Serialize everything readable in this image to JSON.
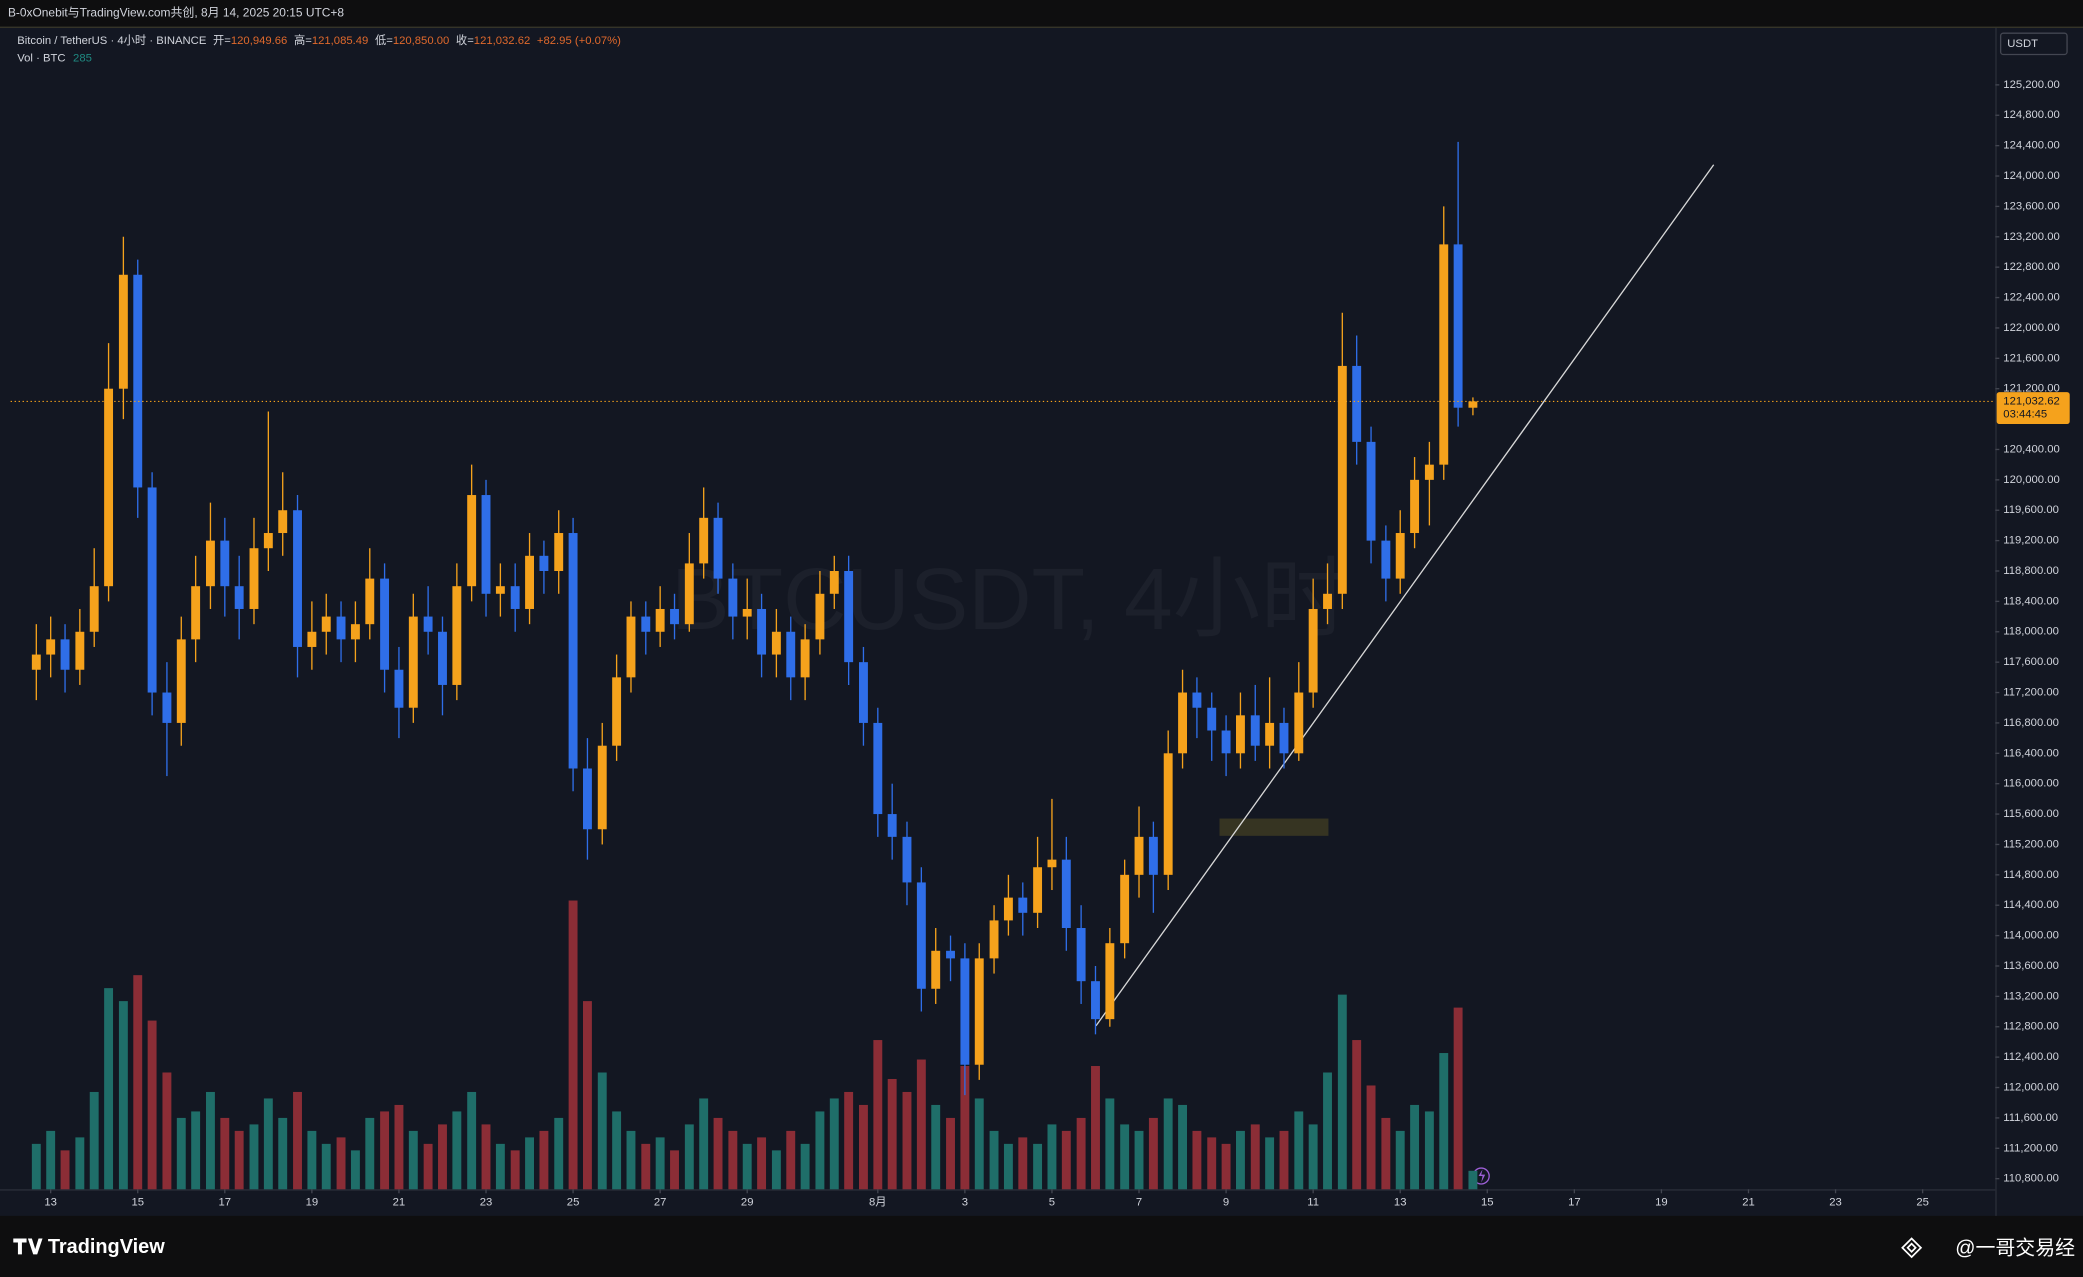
{
  "header": {
    "caption": "B-0xOnebit与TradingView.com共创, 8月 14, 2025 20:15 UTC+8",
    "symbol": "Bitcoin / TetherUS · 4小时 · BINANCE",
    "ohlc": [
      {
        "k": "开=",
        "v": "120,949.66"
      },
      {
        "k": "高=",
        "v": "121,085.49"
      },
      {
        "k": "低=",
        "v": "120,850.00"
      },
      {
        "k": "收=",
        "v": "121,032.62"
      }
    ],
    "change": "+82.95 (+0.07%)",
    "vol_label": "Vol · BTC",
    "currency": "USDT",
    "watermark": "BTCUSDT, 4小时"
  },
  "footer": {
    "brand": "TradingView",
    "credit": "@一哥交易经"
  },
  "chart_data": {
    "type": "candlestick",
    "up_color": "#f5a21c",
    "down_color": "#2f6ee8",
    "volume_up_color": "#1f6e69",
    "volume_down_color": "#8b2d36",
    "xlim": [
      12.08,
      57.67
    ],
    "ylim": [
      110660,
      125950
    ],
    "volume_ylim": [
      0,
      6000
    ],
    "grid": false,
    "xticks": [
      13,
      15,
      17,
      19,
      21,
      23,
      25,
      27,
      29,
      {
        "value": 32,
        "label": "8月"
      },
      {
        "value": 34,
        "label": "3"
      },
      {
        "value": 36,
        "label": "5"
      },
      {
        "value": 38,
        "label": "7"
      },
      {
        "value": 40,
        "label": "9"
      },
      {
        "value": 42,
        "label": "11"
      },
      {
        "value": 44,
        "label": "13"
      },
      {
        "value": 46,
        "label": "15"
      },
      {
        "value": 48,
        "label": "17"
      },
      {
        "value": 50,
        "label": "19"
      },
      {
        "value": 52,
        "label": "21"
      },
      {
        "value": 54,
        "label": "23"
      },
      {
        "value": 56,
        "label": "25"
      }
    ],
    "yticks": [
      {
        "value": 110800,
        "label": "110,800.00"
      },
      {
        "value": 111200,
        "label": "111,200.00"
      },
      {
        "value": 111600,
        "label": "111,600.00"
      },
      {
        "value": 112000,
        "label": "112,000.00"
      },
      {
        "value": 112400,
        "label": "112,400.00"
      },
      {
        "value": 112800,
        "label": "112,800.00"
      },
      {
        "value": 113200,
        "label": "113,200.00"
      },
      {
        "value": 113600,
        "label": "113,600.00"
      },
      {
        "value": 114000,
        "label": "114,000.00"
      },
      {
        "value": 114400,
        "label": "114,400.00"
      },
      {
        "value": 114800,
        "label": "114,800.00"
      },
      {
        "value": 115200,
        "label": "115,200.00"
      },
      {
        "value": 115600,
        "label": "115,600.00"
      },
      {
        "value": 116000,
        "label": "116,000.00"
      },
      {
        "value": 116400,
        "label": "116,400.00"
      },
      {
        "value": 116800,
        "label": "116,800.00"
      },
      {
        "value": 117200,
        "label": "117,200.00"
      },
      {
        "value": 117600,
        "label": "117,600.00"
      },
      {
        "value": 118000,
        "label": "118,000.00"
      },
      {
        "value": 118400,
        "label": "118,400.00"
      },
      {
        "value": 118800,
        "label": "118,800.00"
      },
      {
        "value": 119200,
        "label": "119,200.00"
      },
      {
        "value": 119600,
        "label": "119,600.00"
      },
      {
        "value": 120000,
        "label": "120,000.00"
      },
      {
        "value": 120400,
        "label": "120,400.00"
      },
      {
        "value": 121200,
        "label": "121,200.00"
      },
      {
        "value": 121600,
        "label": "121,600.00"
      },
      {
        "value": 122000,
        "label": "122,000.00"
      },
      {
        "value": 122400,
        "label": "122,400.00"
      },
      {
        "value": 122800,
        "label": "122,800.00"
      },
      {
        "value": 123200,
        "label": "123,200.00"
      },
      {
        "value": 123600,
        "label": "123,600.00"
      },
      {
        "value": 124000,
        "label": "124,000.00"
      },
      {
        "value": 124400,
        "label": "124,400.00"
      },
      {
        "value": 124800,
        "label": "124,800.00"
      },
      {
        "value": 125200,
        "label": "125,200.00"
      }
    ],
    "last_price": {
      "value": 121032.62,
      "label": "121,032.62"
    },
    "countdown": "03:44:45",
    "x": [
      12.67,
      13,
      13.33,
      13.67,
      14,
      14.33,
      14.67,
      15,
      15.33,
      15.67,
      16,
      16.33,
      16.67,
      17,
      17.33,
      17.67,
      18,
      18.33,
      18.67,
      19,
      19.33,
      19.67,
      20,
      20.33,
      20.67,
      21,
      21.33,
      21.67,
      22,
      22.33,
      22.67,
      23,
      23.33,
      23.67,
      24,
      24.33,
      24.67,
      25,
      25.33,
      25.67,
      26,
      26.33,
      26.67,
      27,
      27.33,
      27.67,
      28,
      28.33,
      28.67,
      29,
      29.33,
      29.67,
      30,
      30.33,
      30.67,
      31,
      31.33,
      31.67,
      32,
      32.33,
      32.67,
      33,
      33.33,
      33.67,
      34,
      34.33,
      34.67,
      35,
      35.33,
      35.67,
      36,
      36.33,
      36.67,
      37,
      37.33,
      37.67,
      38,
      38.33,
      38.67,
      39,
      39.33,
      39.67,
      40,
      40.33,
      40.67,
      41,
      41.33,
      41.67,
      42,
      42.33,
      42.67,
      43,
      43.33,
      43.67,
      44,
      44.33,
      44.67,
      45,
      45.33,
      45.67
    ],
    "candles": [
      [
        117500,
        118100,
        117100,
        117700
      ],
      [
        117700,
        118200,
        117400,
        117900
      ],
      [
        117900,
        118100,
        117200,
        117500
      ],
      [
        117500,
        118300,
        117300,
        118000
      ],
      [
        118000,
        119100,
        117800,
        118600
      ],
      [
        118600,
        121800,
        118400,
        121200
      ],
      [
        121200,
        123200,
        120800,
        122700
      ],
      [
        122700,
        122900,
        119500,
        119900
      ],
      [
        119900,
        120100,
        116900,
        117200
      ],
      [
        117200,
        117600,
        116100,
        116800
      ],
      [
        116800,
        118200,
        116500,
        117900
      ],
      [
        117900,
        119000,
        117600,
        118600
      ],
      [
        118600,
        119700,
        118300,
        119200
      ],
      [
        119200,
        119500,
        118200,
        118600
      ],
      [
        118600,
        119000,
        117900,
        118300
      ],
      [
        118300,
        119500,
        118100,
        119100
      ],
      [
        119100,
        120900,
        118800,
        119300
      ],
      [
        119300,
        120100,
        119000,
        119600
      ],
      [
        119600,
        119800,
        117400,
        117800
      ],
      [
        117800,
        118400,
        117500,
        118000
      ],
      [
        118000,
        118500,
        117700,
        118200
      ],
      [
        118200,
        118400,
        117600,
        117900
      ],
      [
        117900,
        118400,
        117600,
        118100
      ],
      [
        118100,
        119100,
        117900,
        118700
      ],
      [
        118700,
        118900,
        117200,
        117500
      ],
      [
        117500,
        117800,
        116600,
        117000
      ],
      [
        117000,
        118500,
        116800,
        118200
      ],
      [
        118200,
        118600,
        117700,
        118000
      ],
      [
        118000,
        118200,
        116900,
        117300
      ],
      [
        117300,
        118900,
        117100,
        118600
      ],
      [
        118600,
        120200,
        118400,
        119800
      ],
      [
        119800,
        120000,
        118200,
        118500
      ],
      [
        118500,
        118900,
        118200,
        118600
      ],
      [
        118600,
        118900,
        118000,
        118300
      ],
      [
        118300,
        119300,
        118100,
        119000
      ],
      [
        119000,
        119200,
        118500,
        118800
      ],
      [
        118800,
        119600,
        118500,
        119300
      ],
      [
        119300,
        119500,
        115900,
        116200
      ],
      [
        116200,
        116600,
        115000,
        115400
      ],
      [
        115400,
        116800,
        115200,
        116500
      ],
      [
        116500,
        117700,
        116300,
        117400
      ],
      [
        117400,
        118400,
        117200,
        118200
      ],
      [
        118200,
        118400,
        117700,
        118000
      ],
      [
        118000,
        118600,
        117800,
        118300
      ],
      [
        118300,
        118500,
        117900,
        118100
      ],
      [
        118100,
        119300,
        118000,
        118900
      ],
      [
        118900,
        119900,
        118700,
        119500
      ],
      [
        119500,
        119700,
        118500,
        118700
      ],
      [
        118700,
        118900,
        117900,
        118200
      ],
      [
        118200,
        118700,
        117900,
        118300
      ],
      [
        118300,
        118500,
        117400,
        117700
      ],
      [
        117700,
        118300,
        117400,
        118000
      ],
      [
        118000,
        118200,
        117100,
        117400
      ],
      [
        117400,
        118100,
        117100,
        117900
      ],
      [
        117900,
        118800,
        117700,
        118500
      ],
      [
        118500,
        119000,
        118300,
        118800
      ],
      [
        118800,
        119000,
        117300,
        117600
      ],
      [
        117600,
        117800,
        116500,
        116800
      ],
      [
        116800,
        117000,
        115300,
        115600
      ],
      [
        115600,
        116000,
        115000,
        115300
      ],
      [
        115300,
        115500,
        114400,
        114700
      ],
      [
        114700,
        114900,
        113000,
        113300
      ],
      [
        113300,
        114100,
        113100,
        113800
      ],
      [
        113800,
        114000,
        113400,
        113700
      ],
      [
        113700,
        113900,
        111900,
        112300
      ],
      [
        112300,
        113900,
        112100,
        113700
      ],
      [
        113700,
        114400,
        113500,
        114200
      ],
      [
        114200,
        114800,
        114000,
        114500
      ],
      [
        114500,
        114700,
        114000,
        114300
      ],
      [
        114300,
        115300,
        114100,
        114900
      ],
      [
        114900,
        115800,
        114600,
        115000
      ],
      [
        115000,
        115300,
        113800,
        114100
      ],
      [
        114100,
        114400,
        113100,
        113400
      ],
      [
        113400,
        113600,
        112700,
        112900
      ],
      [
        112900,
        114100,
        112800,
        113900
      ],
      [
        113900,
        115000,
        113700,
        114800
      ],
      [
        114800,
        115700,
        114500,
        115300
      ],
      [
        115300,
        115500,
        114300,
        114800
      ],
      [
        114800,
        116700,
        114600,
        116400
      ],
      [
        116400,
        117500,
        116200,
        117200
      ],
      [
        117200,
        117400,
        116600,
        117000
      ],
      [
        117000,
        117200,
        116300,
        116700
      ],
      [
        116700,
        116900,
        116100,
        116400
      ],
      [
        116400,
        117200,
        116200,
        116900
      ],
      [
        116900,
        117300,
        116300,
        116500
      ],
      [
        116500,
        117400,
        116200,
        116800
      ],
      [
        116800,
        117000,
        116200,
        116400
      ],
      [
        116400,
        117600,
        116300,
        117200
      ],
      [
        117200,
        118700,
        117000,
        118300
      ],
      [
        118300,
        118900,
        118100,
        118500
      ],
      [
        118500,
        122200,
        118300,
        121500
      ],
      [
        121500,
        121900,
        120200,
        120500
      ],
      [
        120500,
        120700,
        118900,
        119200
      ],
      [
        119200,
        119400,
        118400,
        118700
      ],
      [
        118700,
        119600,
        118500,
        119300
      ],
      [
        119300,
        120300,
        119100,
        120000
      ],
      [
        120000,
        120500,
        119400,
        120200
      ],
      [
        120200,
        123600,
        120000,
        123100
      ],
      [
        123100,
        124450,
        120700,
        120950
      ],
      [
        120949.66,
        121085.49,
        120850,
        121032.62
      ]
    ],
    "volume": [
      700,
      900,
      600,
      800,
      1500,
      3100,
      2900,
      3300,
      2600,
      1800,
      1100,
      1200,
      1500,
      1100,
      900,
      1000,
      1400,
      1100,
      1500,
      900,
      700,
      800,
      600,
      1100,
      1200,
      1300,
      900,
      700,
      1000,
      1200,
      1500,
      1000,
      700,
      600,
      800,
      900,
      1100,
      4450,
      2900,
      1800,
      1200,
      900,
      700,
      800,
      600,
      1000,
      1400,
      1100,
      900,
      700,
      800,
      600,
      900,
      700,
      1200,
      1400,
      1500,
      1300,
      2300,
      1700,
      1500,
      2000,
      1300,
      1100,
      1900,
      1400,
      900,
      700,
      800,
      700,
      1000,
      900,
      1100,
      1900,
      1400,
      1000,
      900,
      1100,
      1400,
      1300,
      900,
      800,
      700,
      900,
      1000,
      800,
      900,
      1200,
      1000,
      1800,
      3000,
      2300,
      1600,
      1100,
      900,
      1300,
      1200,
      2100,
      2800,
      285
    ]
  }
}
